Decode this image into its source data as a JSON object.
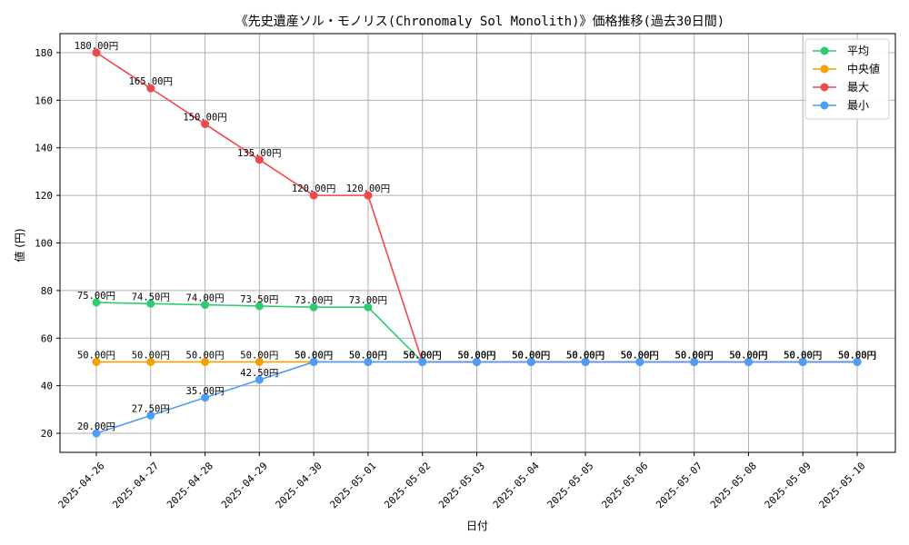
{
  "chart_data": {
    "type": "line",
    "title": "《先史遺産ソル・モノリス(Chronomaly Sol Monolith)》価格推移(過去30日間)",
    "xlabel": "日付",
    "ylabel": "値 (円)",
    "ylim": [
      12,
      188
    ],
    "yticks": [
      20,
      40,
      60,
      80,
      100,
      120,
      140,
      160,
      180
    ],
    "grid": true,
    "legend_position": "top-right",
    "label_suffix": "円",
    "categories": [
      "2025-04-26",
      "2025-04-27",
      "2025-04-28",
      "2025-04-29",
      "2025-04-30",
      "2025-05-01",
      "2025-05-02",
      "2025-05-03",
      "2025-05-04",
      "2025-05-05",
      "2025-05-06",
      "2025-05-07",
      "2025-05-08",
      "2025-05-09",
      "2025-05-10"
    ],
    "series": [
      {
        "name": "平均",
        "key": "average",
        "color": "#2ecc71",
        "values": [
          75.0,
          74.5,
          74.0,
          73.5,
          73.0,
          73.0,
          50.0,
          50.0,
          50.0,
          50.0,
          50.0,
          50.0,
          50.0,
          50.0,
          50.0
        ]
      },
      {
        "name": "中央値",
        "key": "median",
        "color": "#f5a000",
        "values": [
          50.0,
          50.0,
          50.0,
          50.0,
          50.0,
          50.0,
          50.0,
          50.0,
          50.0,
          50.0,
          50.0,
          50.0,
          50.0,
          50.0,
          50.0
        ]
      },
      {
        "name": "最大",
        "key": "max",
        "color": "#f04848",
        "values": [
          180.0,
          165.0,
          150.0,
          135.0,
          120.0,
          120.0,
          50.0,
          50.0,
          50.0,
          50.0,
          50.0,
          50.0,
          50.0,
          50.0,
          50.0
        ]
      },
      {
        "name": "最小",
        "key": "min",
        "color": "#4d9cf6",
        "values": [
          20.0,
          27.5,
          35.0,
          42.5,
          50.0,
          50.0,
          50.0,
          50.0,
          50.0,
          50.0,
          50.0,
          50.0,
          50.0,
          50.0,
          50.0
        ]
      }
    ]
  }
}
